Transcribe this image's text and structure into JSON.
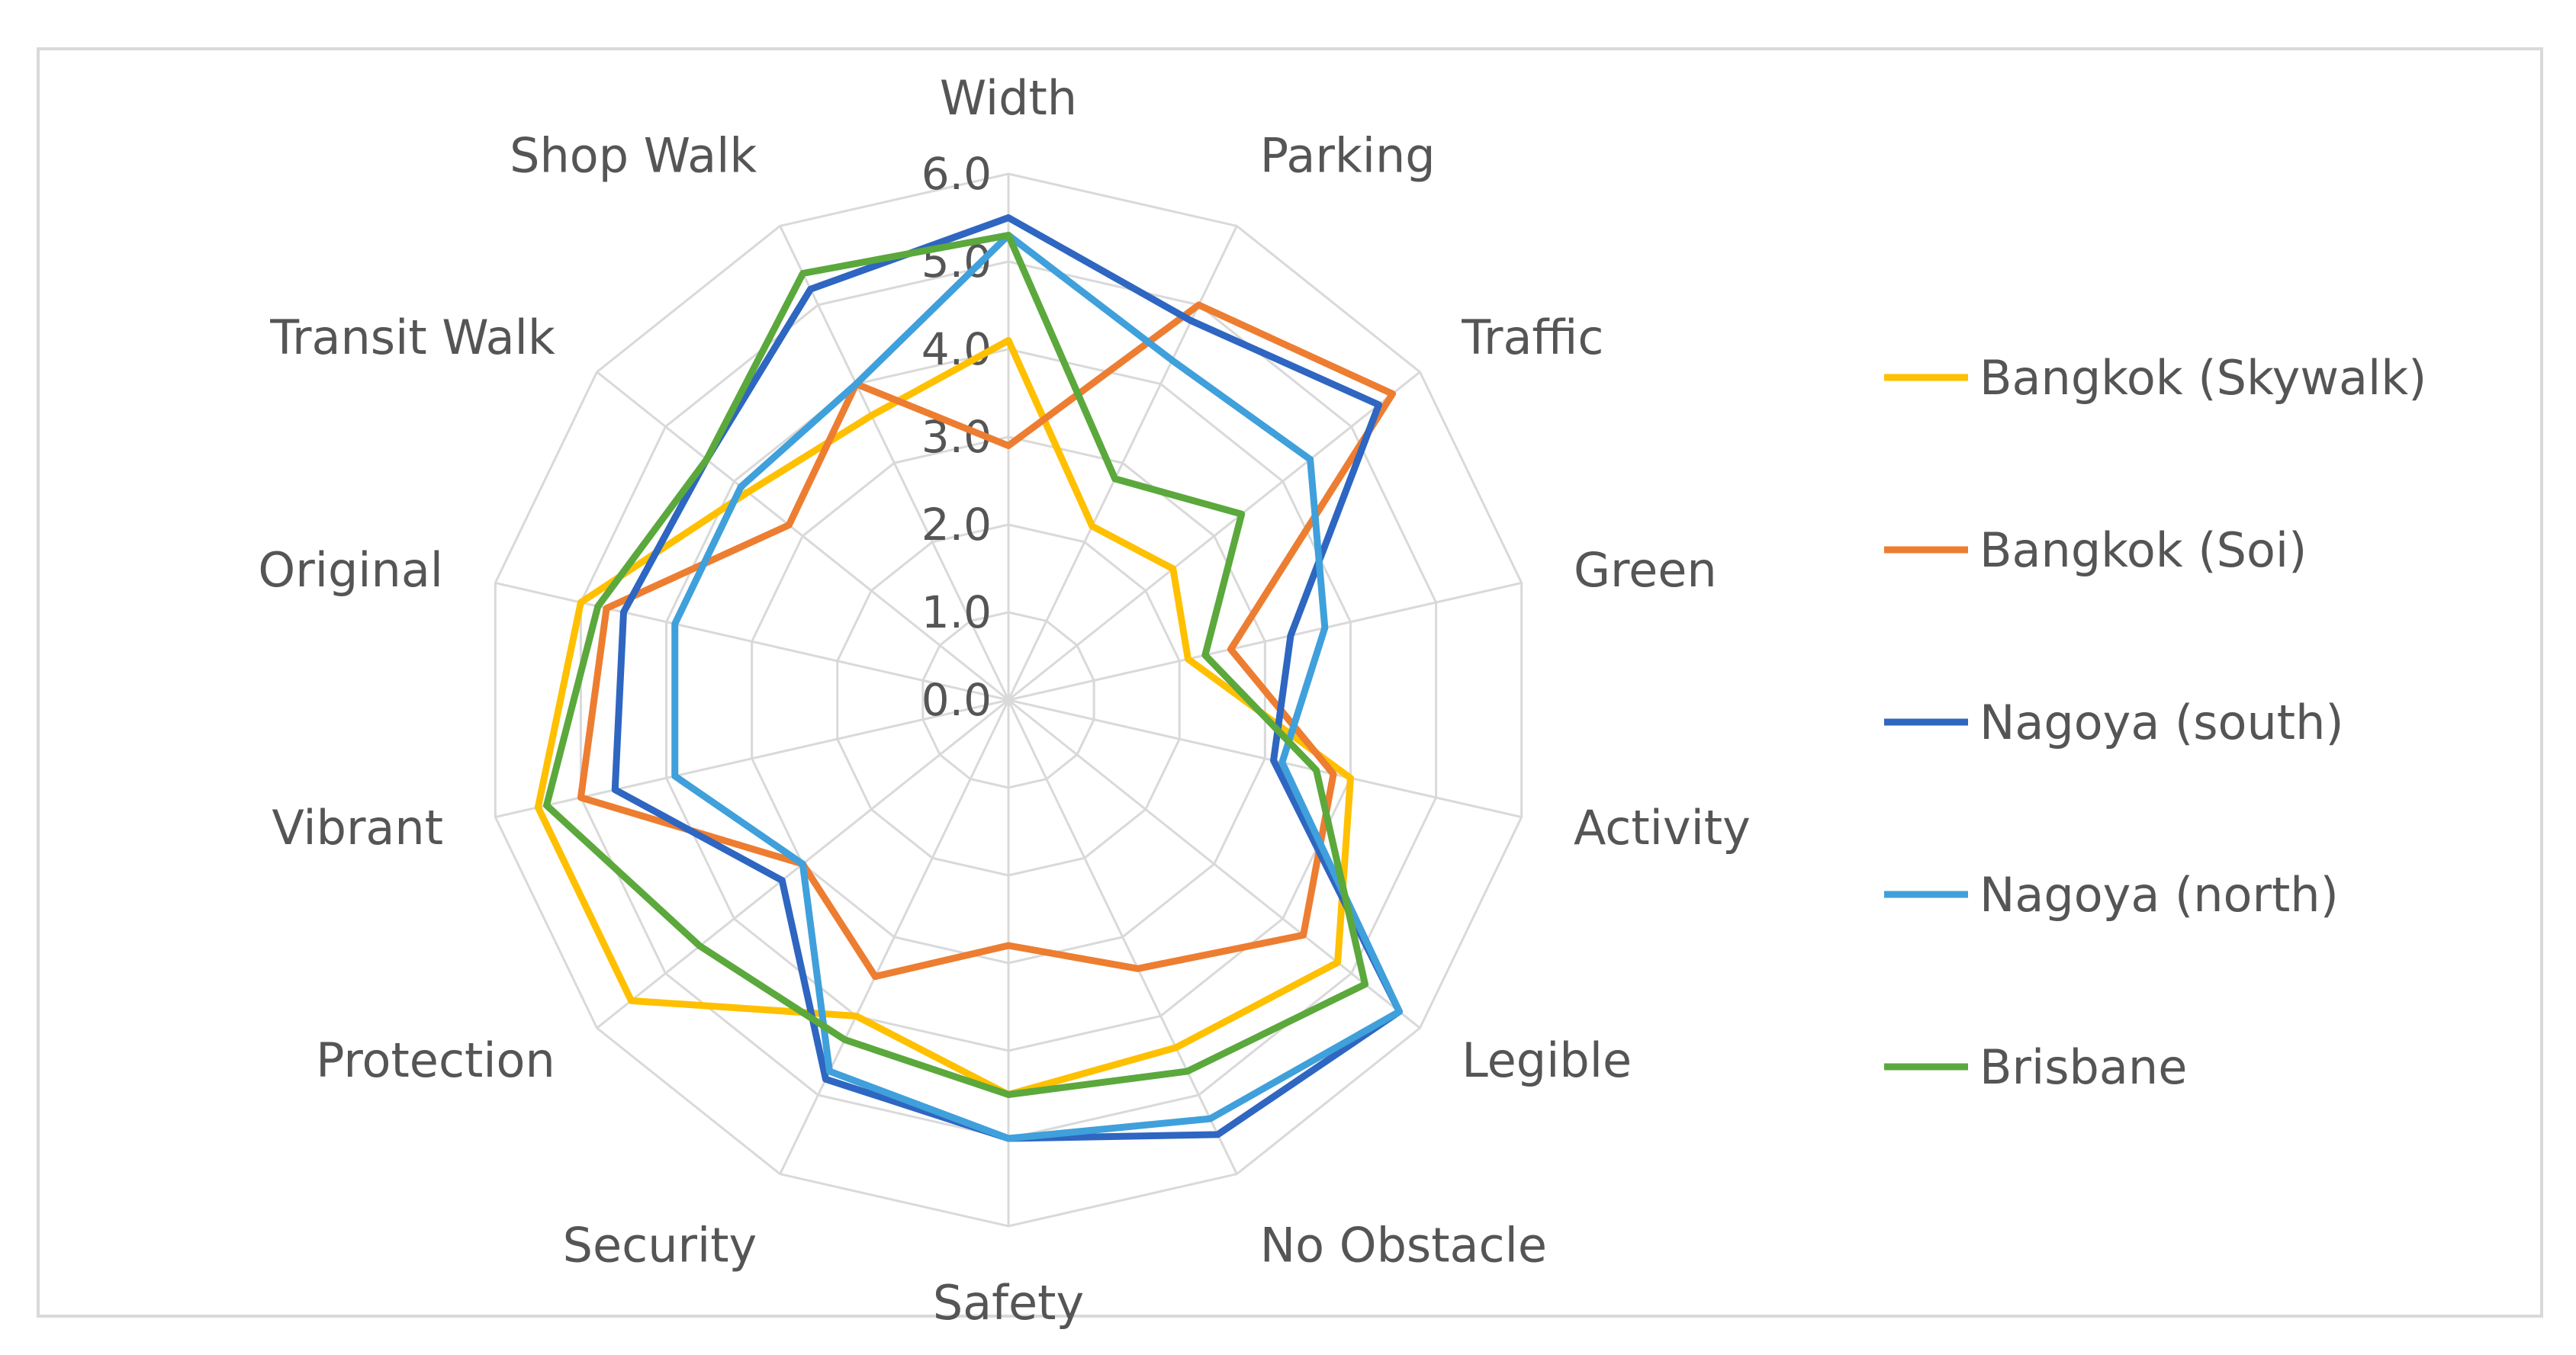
{
  "chart_data": {
    "type": "radar",
    "title": "",
    "axes": [
      "Width",
      "Parking",
      "Traffic",
      "Green",
      "Activity",
      "Legible",
      "No Obstacle",
      "Safety",
      "Security",
      "Protection",
      "Vibrant",
      "Original",
      "Transit Walk",
      "Shop Walk"
    ],
    "rlim": [
      0,
      6
    ],
    "ticks": [
      "0.0",
      "1.0",
      "2.0",
      "3.0",
      "4.0",
      "5.0",
      "6.0"
    ],
    "grid": true,
    "legend_position": "right",
    "series": [
      {
        "name": "Bangkok (Skywalk)",
        "color": "#FFC000",
        "values": [
          4.1,
          2.2,
          2.4,
          2.1,
          4.0,
          4.8,
          4.4,
          4.5,
          4.0,
          5.5,
          5.5,
          5.0,
          3.8,
          3.6
        ]
      },
      {
        "name": "Bangkok (Soi)",
        "color": "#ED7D31",
        "values": [
          2.9,
          5.0,
          5.6,
          2.6,
          3.8,
          4.3,
          3.4,
          2.8,
          3.5,
          3.0,
          5.0,
          4.7,
          3.2,
          4.0
        ]
      },
      {
        "name": "Nagoya (south)",
        "color": "#2E66C1",
        "values": [
          5.5,
          4.8,
          5.4,
          3.3,
          3.1,
          5.7,
          5.5,
          5.0,
          4.8,
          3.3,
          4.6,
          4.5,
          4.4,
          5.2
        ]
      },
      {
        "name": "Nagoya (north)",
        "color": "#3FA0DB",
        "values": [
          5.3,
          4.3,
          4.4,
          3.7,
          3.2,
          5.7,
          5.3,
          5.0,
          4.7,
          3.0,
          3.9,
          3.9,
          3.9,
          4.0
        ]
      },
      {
        "name": "Brisbane",
        "color": "#5BA83C",
        "values": [
          5.3,
          2.8,
          3.4,
          2.3,
          3.6,
          5.2,
          4.7,
          4.5,
          4.3,
          4.5,
          5.4,
          4.8,
          4.4,
          5.4
        ]
      }
    ]
  }
}
